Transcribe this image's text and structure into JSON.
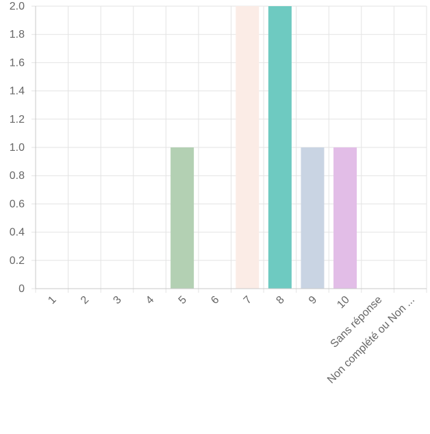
{
  "chart_data": {
    "type": "bar",
    "categories": [
      "1",
      "2",
      "3",
      "4",
      "5",
      "6",
      "7",
      "8",
      "9",
      "10",
      "Sans réponse",
      "Non complété ou Non ..."
    ],
    "values": [
      0,
      0,
      0,
      0,
      1,
      0,
      2,
      2,
      1,
      1,
      0,
      0
    ],
    "bar_colors": [
      "#ffffff",
      "#ffffff",
      "#ffffff",
      "#ffffff",
      "#b3d0b3",
      "#ffffff",
      "#fbece6",
      "#6ecac1",
      "#c9d4e3",
      "#e2bde7",
      "#ffffff",
      "#ffffff"
    ],
    "y_ticks": [
      "0",
      "0.2",
      "0.4",
      "0.6",
      "0.8",
      "1.0",
      "1.2",
      "1.4",
      "1.6",
      "1.8",
      "2.0"
    ],
    "ylim": [
      0,
      2
    ],
    "grid": true,
    "title": "",
    "xlabel": "",
    "ylabel": ""
  }
}
